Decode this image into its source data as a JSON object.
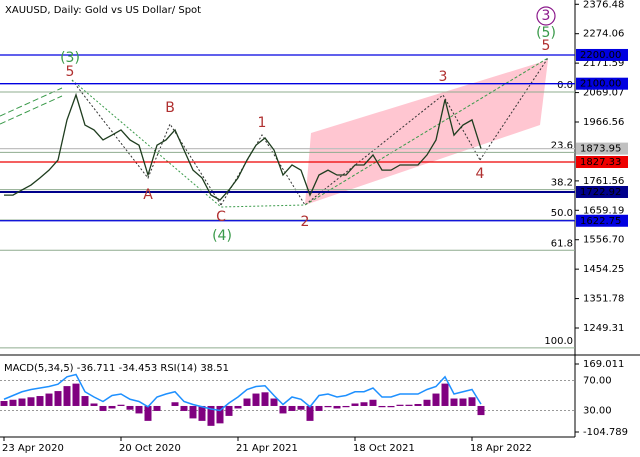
{
  "chart_data": [
    {
      "type": "line",
      "title": "XAUUSD, Daily:  Gold vs US Dollar/ Spot",
      "categories": [
        "23 Apr 2020",
        null,
        null,
        null,
        null,
        null,
        null,
        null,
        null,
        null,
        null,
        null,
        null,
        "20 Oct 2020",
        null,
        null,
        null,
        null,
        null,
        null,
        null,
        null,
        null,
        null,
        null,
        null,
        "21 Apr 2021",
        null,
        null,
        null,
        null,
        null,
        null,
        null,
        null,
        null,
        null,
        null,
        null,
        "18 Oct 2021",
        null,
        null,
        null,
        null,
        null,
        null,
        null,
        null,
        null,
        null,
        null,
        null,
        "18 Apr 2022",
        null
      ],
      "values": [
        1712,
        1712,
        1730,
        1747,
        1772,
        1799,
        1834,
        1974,
        2061,
        1956,
        1939,
        1904,
        1921,
        1939,
        1904,
        1886,
        1782,
        1886,
        1904,
        1939,
        1869,
        1799,
        1772,
        1712,
        1695,
        1730,
        1772,
        1834,
        1886,
        1911,
        1869,
        1782,
        1817,
        1799,
        1712,
        1782,
        1799,
        1782,
        1782,
        1817,
        1817,
        1852,
        1799,
        1799,
        1817,
        1817,
        1817,
        1852,
        1904,
        2045,
        1921,
        1956,
        1974,
        1874
      ],
      "color": "#1f3d1f",
      "ylim": [
        1158.8,
        2391.4
      ],
      "yticks": [
        2376.48,
        2274.06,
        2171.59,
        2069.07,
        1966.56,
        1761.56,
        1659.19,
        {
          "value": 1556.7,
          "label": "1556.70"
        },
        1454.25,
        1351.78,
        1249.31
      ],
      "levels": [
        {
          "value": 2200,
          "label": "2200.00",
          "color": "#0000e0"
        },
        {
          "value": 2100,
          "label": "2100.00",
          "color": "#0000e0"
        },
        {
          "value": 1873.95,
          "label": "1873.95",
          "color": "#c0c0c0"
        },
        {
          "value": 1827.33,
          "label": "1827.33",
          "color": "#ee0000"
        },
        {
          "value": 1722.92,
          "label": "1722.92",
          "color": "#00008b"
        },
        {
          "value": 1622.75,
          "label": "1622.75",
          "color": "#0000e0"
        }
      ],
      "fib_color": "#8fac8f",
      "fib_levels": [
        {
          "label": "0.0",
          "price": 2071
        },
        {
          "label": "23.6",
          "price": 1861
        },
        {
          "label": "38.2",
          "price": 1731
        },
        {
          "label": "50.0",
          "price": 1625.5
        },
        {
          "label": "61.8",
          "price": 1520
        },
        {
          "label": "100.0",
          "price": 1180
        }
      ],
      "annotations": [
        {
          "text": "(3)",
          "color": "#3a9a4a"
        },
        {
          "text": "5",
          "color": "#b03030"
        },
        {
          "text": "B",
          "color": "#b03030"
        },
        {
          "text": "A",
          "color": "#b03030"
        },
        {
          "text": "C",
          "color": "#b03030"
        },
        {
          "text": "(4)",
          "color": "#3a9a4a"
        },
        {
          "text": "1",
          "color": "#b03030"
        },
        {
          "text": "2",
          "color": "#b03030"
        },
        {
          "text": "3",
          "color": "#b03030"
        },
        {
          "text": "4",
          "color": "#b03030"
        },
        {
          "text": "(5)",
          "color": "#3a9a4a"
        },
        {
          "text": "5",
          "color": "#b03030"
        },
        {
          "text": "3",
          "color": "#8b1a8b"
        }
      ]
    },
    {
      "type": "bar",
      "series": [
        {
          "name": "MACD(5,34,5)",
          "color": "#800080",
          "readout": [
            -36.711,
            -34.453
          ],
          "values": [
            20,
            25,
            30,
            35,
            40,
            50,
            60,
            80,
            90,
            40,
            10,
            -20,
            -10,
            5,
            -15,
            -30,
            -60,
            -20,
            0,
            15,
            -20,
            -50,
            -60,
            -80,
            -70,
            -40,
            -10,
            30,
            50,
            55,
            30,
            -30,
            -20,
            -15,
            -60,
            -20,
            -5,
            -10,
            -5,
            10,
            15,
            25,
            -5,
            -5,
            5,
            5,
            8,
            25,
            50,
            90,
            30,
            30,
            35,
            -36.711
          ]
        },
        {
          "name": "RSI(14)",
          "color": "#1e90ff",
          "axis": "y2",
          "readout": [
            38.51
          ],
          "values": [
            45,
            50,
            55,
            58,
            60,
            62,
            65,
            75,
            78,
            55,
            48,
            42,
            50,
            52,
            45,
            42,
            35,
            48,
            52,
            55,
            42,
            38,
            35,
            32,
            30,
            40,
            48,
            58,
            62,
            63,
            50,
            38,
            48,
            45,
            35,
            50,
            52,
            48,
            50,
            55,
            55,
            60,
            48,
            48,
            52,
            52,
            52,
            58,
            62,
            75,
            52,
            55,
            58,
            38.51
          ]
        }
      ],
      "ylim": [
        -104.789,
        169.011
      ],
      "yticks": [
        169.011,
        -104.789
      ],
      "y2lim": [
        0,
        100
      ],
      "y2ticks": [
        {
          "value": 70,
          "label": "70.00"
        },
        {
          "value": 30,
          "label": "30.00"
        }
      ]
    }
  ]
}
